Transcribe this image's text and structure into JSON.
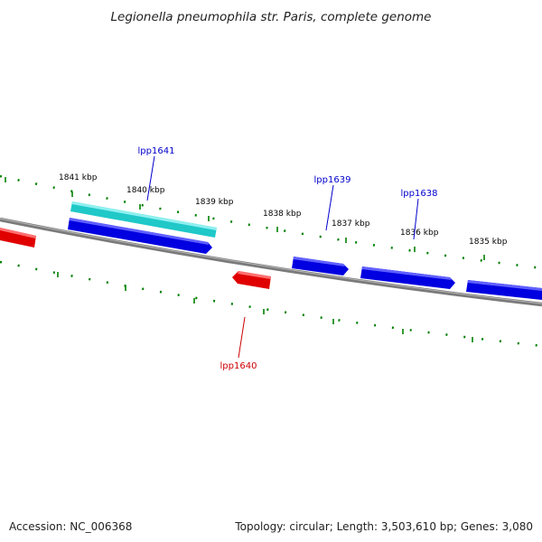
{
  "title": "Legionella pneumophila str. Paris, complete genome",
  "accession": "Accession: NC_006368",
  "summary": "Topology: circular; Length: 3,503,610 bp; Genes: 3,080",
  "colors": {
    "backbone": "#808080",
    "forward_gene": "#0000e0",
    "reverse_gene": "#e00000",
    "highlight_gene": "#20c8c8",
    "ticks": "#008000",
    "forward_label": "#0000cc",
    "reverse_label": "#cc0000"
  },
  "tick_labels": [
    "1841 kbp",
    "1840 kbp",
    "1839 kbp",
    "1838 kbp",
    "1837 kbp",
    "1836 kbp",
    "1835 kbp"
  ],
  "gene_labels": [
    {
      "text": "lpp1641",
      "strand": "forward"
    },
    {
      "text": "lpp1639",
      "strand": "forward"
    },
    {
      "text": "lpp1638",
      "strand": "forward"
    },
    {
      "text": "lpp1640",
      "strand": "reverse"
    }
  ]
}
